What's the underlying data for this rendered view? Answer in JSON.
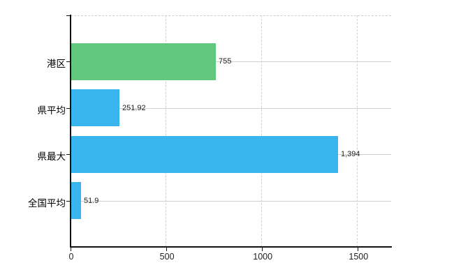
{
  "chart_data": {
    "type": "bar",
    "orientation": "horizontal",
    "title": "",
    "xlabel": "",
    "ylabel": "",
    "categories": [
      "港区",
      "県平均",
      "県最大",
      "全国平均"
    ],
    "values": [
      755,
      251.92,
      1394,
      51.9
    ],
    "value_labels": [
      "755",
      "251.92",
      "1,394",
      "51.9"
    ],
    "bar_colors": [
      "#62c87e",
      "#38b5ed",
      "#38b5ed",
      "#38b5ed"
    ],
    "x_ticks": [
      0,
      500,
      1000,
      1500
    ],
    "x_tick_labels": [
      "0",
      "500",
      "1000",
      "1500"
    ],
    "xlim": [
      0,
      1674
    ],
    "grid": {
      "vertical_style": "dashed",
      "horizontal_style": "solid",
      "top_border_style": "dashed"
    },
    "legend": "none"
  },
  "colors": {
    "background": "#ffffff",
    "bar_green": "#62c87e",
    "bar_blue": "#38b5ed",
    "axis": "#121212",
    "grid_vertical": "#d5ced5",
    "grid_horizontal": "#ccd4c9",
    "text": "#1f1f1f"
  }
}
